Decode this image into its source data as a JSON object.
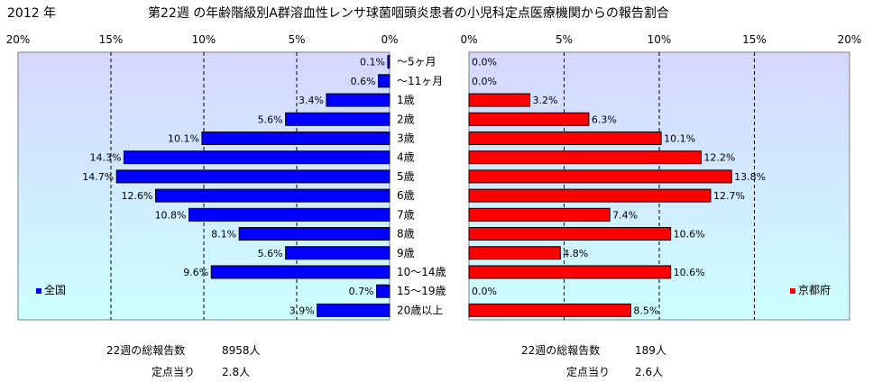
{
  "header": {
    "year": "2012 年",
    "title": "第22週 の年齢階級別A群溶血性レンサ球菌咽頭炎患者の小児科定点医療機関からの報告割合"
  },
  "chart_data": {
    "type": "bar",
    "orientation": "horizontal",
    "categories": [
      "～5ヶ月",
      "～11ヶ月",
      "1歳",
      "2歳",
      "3歳",
      "4歳",
      "5歳",
      "6歳",
      "7歳",
      "8歳",
      "9歳",
      "10～14歳",
      "15～19歳",
      "20歳以上"
    ],
    "xlim": [
      0,
      20
    ],
    "ticks": [
      "0%",
      "5%",
      "10%",
      "15%",
      "20%"
    ],
    "ticks_reversed": [
      "20%",
      "15%",
      "10%",
      "5%",
      "0%"
    ],
    "grid": true,
    "series": [
      {
        "name": "全国",
        "color": "#0000ff",
        "values": [
          0.1,
          0.6,
          3.4,
          5.6,
          10.1,
          14.3,
          14.7,
          12.6,
          10.8,
          8.1,
          5.6,
          9.6,
          0.7,
          3.9
        ],
        "labels": [
          "0.1%",
          "0.6%",
          "3.4%",
          "5.6%",
          "10.1%",
          "14.3%",
          "14.7%",
          "12.6%",
          "10.8%",
          "8.1%",
          "5.6%",
          "9.6%",
          "0.7%",
          "3.9%"
        ],
        "legend_position": "bottom-left"
      },
      {
        "name": "京都府",
        "color": "#ff0000",
        "values": [
          0.0,
          0.0,
          3.2,
          6.3,
          10.1,
          12.2,
          13.8,
          12.7,
          7.4,
          10.6,
          4.8,
          10.6,
          0.0,
          8.5
        ],
        "labels": [
          "0.0%",
          "0.0%",
          "3.2%",
          "6.3%",
          "10.1%",
          "12.2%",
          "13.8%",
          "12.7%",
          "7.4%",
          "10.6%",
          "4.8%",
          "10.6%",
          "0.0%",
          "8.5%"
        ],
        "legend_position": "bottom-right"
      }
    ]
  },
  "footer": {
    "national": {
      "total_label": "22週の総報告数",
      "total_value": "8958人",
      "per_label": "定点当り",
      "per_value": "2.8人"
    },
    "kyoto": {
      "total_label": "22週の総報告数",
      "total_value": "189人",
      "per_label": "定点当り",
      "per_value": "2.6人"
    }
  },
  "colors": {
    "plot_bg_top": "#d6d6ff",
    "plot_bg_bottom": "#ccffff",
    "national_bar": "#0000ff",
    "kyoto_bar": "#ff0000"
  }
}
